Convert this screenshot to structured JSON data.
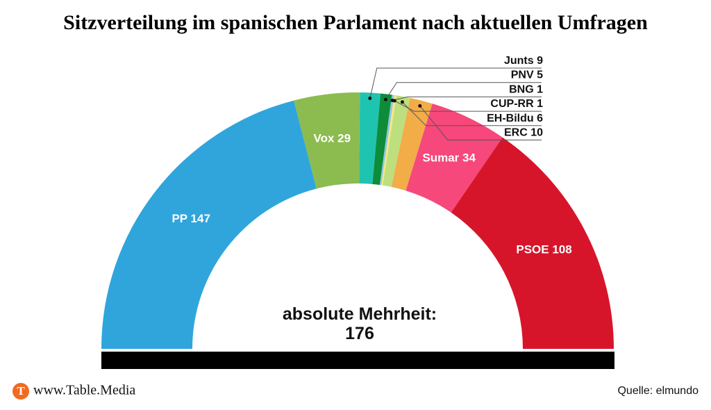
{
  "chart_data": {
    "type": "half-donut",
    "title": "Sitzverteilung im spanischen Parlament nach aktuellen Umfragen",
    "categories": [
      "PP",
      "Vox",
      "Junts",
      "PNV",
      "BNG",
      "CUP-RR",
      "EH-Bildu",
      "ERC",
      "Sumar",
      "PSOE"
    ],
    "values": [
      147,
      29,
      9,
      5,
      1,
      1,
      6,
      10,
      34,
      108
    ],
    "colors": [
      "#2fa5dc",
      "#8cbb50",
      "#1fc4b0",
      "#0e8c3a",
      "#8dc4e8",
      "#f5e97a",
      "#bedf7e",
      "#f2ac48",
      "#f6487a",
      "#d7152a"
    ],
    "annotation": {
      "label": "absolute Mehrheit:",
      "value": 176
    }
  },
  "footer": {
    "logo": "T",
    "site": "www.Table.Media",
    "source": "Quelle: elmundo"
  }
}
